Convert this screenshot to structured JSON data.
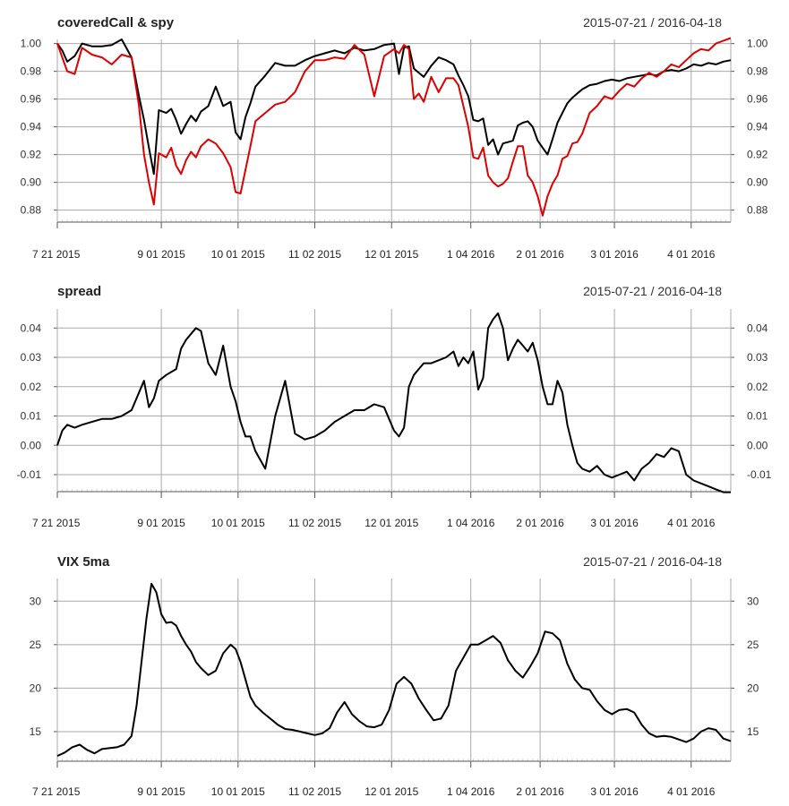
{
  "chart_data": [
    {
      "type": "line",
      "title": "coveredCall & spy",
      "date_range": "2015-07-21 / 2016-04-18",
      "y_ticks": [
        0.88,
        0.9,
        0.92,
        0.94,
        0.96,
        0.98,
        1.0
      ],
      "y_tick_labels": [
        "0.88",
        "0.90",
        "0.92",
        "0.94",
        "0.96",
        "0.98",
        "1.00"
      ],
      "ylim": [
        0.872,
        1.003
      ],
      "x_ticks": [
        0,
        42,
        73,
        104,
        135,
        167,
        195,
        225,
        256
      ],
      "x_tick_labels": [
        "7 21 2015",
        "9 01 2015",
        "10 01 2015",
        "11 02 2015",
        "12 01 2015",
        "1 04 2016",
        "2 01 2016",
        "3 01 2016",
        "4 01 2016"
      ],
      "xlim": [
        0,
        272
      ],
      "series": [
        {
          "name": "coveredCall",
          "color": "#000000",
          "x": [
            0,
            2,
            4,
            7,
            10,
            14,
            18,
            22,
            26,
            30,
            33,
            35,
            37,
            39,
            41,
            44,
            46,
            48,
            50,
            52,
            54,
            56,
            58,
            61,
            64,
            67,
            70,
            72,
            74,
            76,
            78,
            80,
            84,
            88,
            92,
            96,
            100,
            104,
            108,
            112,
            116,
            120,
            124,
            128,
            132,
            136,
            138,
            140,
            142,
            144,
            146,
            148,
            151,
            154,
            157,
            160,
            162,
            164,
            166,
            168,
            170,
            172,
            174,
            176,
            178,
            180,
            182,
            184,
            186,
            188,
            190,
            192,
            194,
            196,
            198,
            200,
            202,
            204,
            206,
            208,
            210,
            212,
            215,
            218,
            221,
            224,
            227,
            230,
            233,
            236,
            239,
            242,
            245,
            248,
            251,
            254,
            257,
            260,
            263,
            266,
            269,
            272
          ],
          "y": [
            1.0,
            0.995,
            0.987,
            0.991,
            1.0,
            0.998,
            0.998,
            0.999,
            1.003,
            0.99,
            0.962,
            0.945,
            0.925,
            0.906,
            0.952,
            0.95,
            0.953,
            0.945,
            0.935,
            0.942,
            0.948,
            0.944,
            0.951,
            0.955,
            0.969,
            0.955,
            0.958,
            0.936,
            0.931,
            0.947,
            0.957,
            0.969,
            0.977,
            0.986,
            0.984,
            0.984,
            0.988,
            0.991,
            0.993,
            0.995,
            0.993,
            0.997,
            0.995,
            0.996,
            0.999,
            1.0,
            0.978,
            0.997,
            0.998,
            0.982,
            0.979,
            0.976,
            0.984,
            0.99,
            0.988,
            0.985,
            0.977,
            0.97,
            0.962,
            0.945,
            0.944,
            0.946,
            0.927,
            0.931,
            0.92,
            0.928,
            0.929,
            0.93,
            0.941,
            0.943,
            0.944,
            0.94,
            0.93,
            0.925,
            0.92,
            0.931,
            0.943,
            0.95,
            0.957,
            0.961,
            0.964,
            0.967,
            0.97,
            0.971,
            0.973,
            0.974,
            0.973,
            0.975,
            0.976,
            0.977,
            0.978,
            0.977,
            0.98,
            0.981,
            0.98,
            0.982,
            0.985,
            0.984,
            0.986,
            0.985,
            0.987,
            0.988
          ]
        },
        {
          "name": "spy",
          "color": "#dd0000",
          "x": [
            0,
            2,
            4,
            7,
            10,
            14,
            18,
            22,
            26,
            30,
            33,
            35,
            37,
            39,
            41,
            44,
            46,
            48,
            50,
            52,
            54,
            56,
            58,
            61,
            64,
            67,
            70,
            72,
            74,
            76,
            78,
            80,
            84,
            88,
            92,
            96,
            100,
            104,
            108,
            112,
            116,
            120,
            124,
            128,
            132,
            136,
            138,
            140,
            142,
            144,
            146,
            148,
            151,
            154,
            157,
            160,
            162,
            164,
            166,
            168,
            170,
            172,
            174,
            176,
            178,
            180,
            182,
            184,
            186,
            188,
            190,
            192,
            194,
            196,
            198,
            200,
            202,
            204,
            206,
            208,
            210,
            212,
            215,
            218,
            221,
            224,
            227,
            230,
            233,
            236,
            239,
            242,
            245,
            248,
            251,
            254,
            257,
            260,
            263,
            266,
            269,
            272
          ],
          "y": [
            1.0,
            0.99,
            0.98,
            0.978,
            0.997,
            0.992,
            0.99,
            0.985,
            0.992,
            0.99,
            0.955,
            0.92,
            0.9,
            0.884,
            0.921,
            0.918,
            0.925,
            0.912,
            0.906,
            0.916,
            0.922,
            0.918,
            0.926,
            0.931,
            0.928,
            0.921,
            0.911,
            0.893,
            0.892,
            0.909,
            0.926,
            0.944,
            0.95,
            0.956,
            0.958,
            0.965,
            0.98,
            0.988,
            0.988,
            0.99,
            0.989,
            0.999,
            0.992,
            0.962,
            0.991,
            0.996,
            0.993,
            0.999,
            0.996,
            0.96,
            0.964,
            0.958,
            0.976,
            0.965,
            0.975,
            0.975,
            0.97,
            0.955,
            0.94,
            0.918,
            0.917,
            0.925,
            0.905,
            0.9,
            0.897,
            0.899,
            0.903,
            0.915,
            0.926,
            0.926,
            0.905,
            0.9,
            0.89,
            0.876,
            0.89,
            0.899,
            0.905,
            0.917,
            0.919,
            0.928,
            0.929,
            0.935,
            0.95,
            0.955,
            0.962,
            0.96,
            0.966,
            0.971,
            0.969,
            0.975,
            0.979,
            0.976,
            0.98,
            0.985,
            0.983,
            0.988,
            0.993,
            0.996,
            0.995,
            1.0,
            1.002,
            1.004
          ]
        }
      ]
    },
    {
      "type": "line",
      "title": "spread",
      "date_range": "2015-07-21 / 2016-04-18",
      "y_ticks": [
        -0.01,
        0.0,
        0.01,
        0.02,
        0.03,
        0.04
      ],
      "y_tick_labels": [
        "-0.01",
        "0.00",
        "0.01",
        "0.02",
        "0.03",
        "0.04"
      ],
      "ylim": [
        -0.0155,
        0.0465
      ],
      "x_ticks": [
        0,
        42,
        73,
        104,
        135,
        167,
        195,
        225,
        256
      ],
      "x_tick_labels": [
        "7 21 2015",
        "9 01 2015",
        "10 01 2015",
        "11 02 2015",
        "12 01 2015",
        "1 04 2016",
        "2 01 2016",
        "3 01 2016",
        "4 01 2016"
      ],
      "xlim": [
        0,
        272
      ],
      "series": [
        {
          "name": "spread",
          "color": "#000000",
          "x": [
            0,
            2,
            4,
            7,
            10,
            14,
            18,
            22,
            26,
            30,
            33,
            35,
            37,
            39,
            41,
            44,
            46,
            48,
            50,
            52,
            54,
            56,
            58,
            61,
            64,
            67,
            70,
            72,
            74,
            76,
            78,
            80,
            84,
            88,
            92,
            96,
            100,
            104,
            108,
            112,
            116,
            120,
            124,
            128,
            132,
            136,
            138,
            140,
            142,
            144,
            146,
            148,
            151,
            154,
            157,
            160,
            162,
            164,
            166,
            168,
            170,
            172,
            174,
            176,
            178,
            180,
            182,
            184,
            186,
            188,
            190,
            192,
            194,
            196,
            198,
            200,
            202,
            204,
            206,
            208,
            210,
            212,
            215,
            218,
            221,
            224,
            227,
            230,
            233,
            236,
            239,
            242,
            245,
            248,
            251,
            254,
            257,
            260,
            263,
            266,
            269,
            272
          ],
          "y": [
            0.0,
            0.005,
            0.007,
            0.006,
            0.007,
            0.008,
            0.009,
            0.009,
            0.01,
            0.012,
            0.018,
            0.022,
            0.013,
            0.016,
            0.022,
            0.024,
            0.025,
            0.026,
            0.033,
            0.036,
            0.038,
            0.04,
            0.039,
            0.028,
            0.024,
            0.034,
            0.02,
            0.015,
            0.008,
            0.003,
            0.003,
            -0.002,
            -0.008,
            0.01,
            0.022,
            0.004,
            0.002,
            0.003,
            0.005,
            0.008,
            0.01,
            0.012,
            0.012,
            0.014,
            0.013,
            0.005,
            0.003,
            0.006,
            0.02,
            0.024,
            0.026,
            0.028,
            0.028,
            0.029,
            0.03,
            0.032,
            0.027,
            0.03,
            0.028,
            0.032,
            0.019,
            0.023,
            0.04,
            0.043,
            0.045,
            0.04,
            0.029,
            0.033,
            0.036,
            0.034,
            0.032,
            0.035,
            0.029,
            0.02,
            0.014,
            0.014,
            0.022,
            0.018,
            0.007,
            0.0,
            -0.006,
            -0.008,
            -0.009,
            -0.007,
            -0.01,
            -0.011,
            -0.01,
            -0.009,
            -0.012,
            -0.008,
            -0.006,
            -0.003,
            -0.004,
            -0.001,
            -0.002,
            -0.01,
            -0.012,
            -0.013,
            -0.014,
            -0.015,
            -0.016,
            -0.016
          ]
        }
      ]
    },
    {
      "type": "line",
      "title": "VIX 5ma",
      "date_range": "2015-07-21 / 2016-04-18",
      "y_ticks": [
        15,
        20,
        25,
        30
      ],
      "y_tick_labels": [
        "15",
        "20",
        "25",
        "30"
      ],
      "ylim": [
        11.7,
        32.6
      ],
      "x_ticks": [
        0,
        42,
        73,
        104,
        135,
        167,
        195,
        225,
        256
      ],
      "x_tick_labels": [
        "7 21 2015",
        "9 01 2015",
        "10 01 2015",
        "11 02 2015",
        "12 01 2015",
        "1 04 2016",
        "2 01 2016",
        "3 01 2016",
        "4 01 2016"
      ],
      "xlim": [
        0,
        272
      ],
      "series": [
        {
          "name": "VIX 5ma",
          "color": "#000000",
          "x": [
            0,
            3,
            6,
            9,
            12,
            15,
            18,
            21,
            24,
            27,
            30,
            32,
            34,
            36,
            38,
            40,
            42,
            44,
            46,
            48,
            50,
            52,
            54,
            56,
            58,
            61,
            64,
            67,
            70,
            72,
            74,
            76,
            78,
            80,
            83,
            86,
            89,
            92,
            95,
            98,
            101,
            104,
            107,
            110,
            113,
            116,
            119,
            122,
            125,
            128,
            131,
            134,
            137,
            140,
            143,
            146,
            149,
            152,
            155,
            158,
            161,
            164,
            167,
            170,
            173,
            176,
            179,
            182,
            185,
            188,
            191,
            194,
            197,
            200,
            203,
            206,
            209,
            212,
            215,
            218,
            221,
            224,
            227,
            230,
            233,
            236,
            239,
            242,
            245,
            248,
            251,
            254,
            257,
            260,
            263,
            266,
            269,
            272
          ],
          "y": [
            12.2,
            12.6,
            13.2,
            13.5,
            12.9,
            12.5,
            13.0,
            13.1,
            13.2,
            13.5,
            14.5,
            18.0,
            23.0,
            28.0,
            32.0,
            31.0,
            28.5,
            27.5,
            27.6,
            27.2,
            26.0,
            25.0,
            24.2,
            23.0,
            22.3,
            21.5,
            22.0,
            24.0,
            25.0,
            24.5,
            23.0,
            21.0,
            19.0,
            18.0,
            17.2,
            16.5,
            15.8,
            15.3,
            15.2,
            15.0,
            14.8,
            14.6,
            14.8,
            15.4,
            17.2,
            18.4,
            17.0,
            16.2,
            15.6,
            15.5,
            15.8,
            17.5,
            20.5,
            21.3,
            20.5,
            18.8,
            17.5,
            16.3,
            16.5,
            18.0,
            22.0,
            23.5,
            25.0,
            25.0,
            25.5,
            26.0,
            25.2,
            23.2,
            22.0,
            21.2,
            22.5,
            24.0,
            26.5,
            26.3,
            25.5,
            22.8,
            21.0,
            20.0,
            19.8,
            18.5,
            17.5,
            17.0,
            17.5,
            17.6,
            17.2,
            15.8,
            14.8,
            14.4,
            14.5,
            14.4,
            14.1,
            13.8,
            14.2,
            15.0,
            15.4,
            15.2,
            14.2,
            13.9
          ]
        }
      ]
    }
  ]
}
